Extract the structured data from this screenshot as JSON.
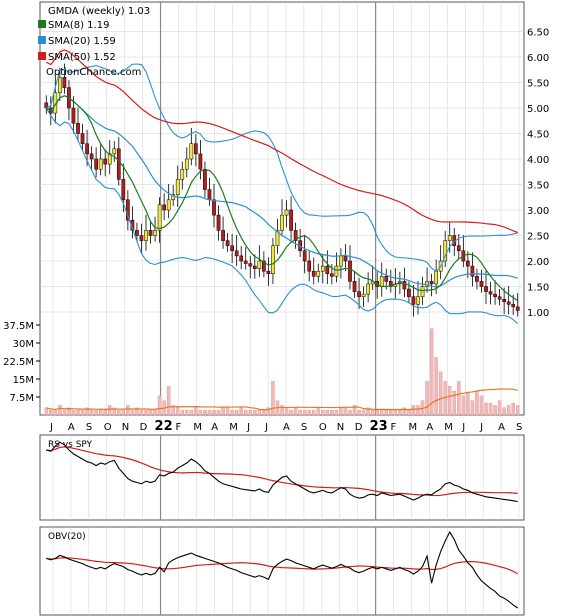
{
  "title": "GMDA (weekly) 1.03",
  "watermark": "OptionChance.com",
  "legend": [
    {
      "label": "SMA(8) 1.19",
      "color": "#1a7d1a"
    },
    {
      "label": "SMA(20) 1.59",
      "color": "#2b8fd6"
    },
    {
      "label": "SMA(50) 1.52",
      "color": "#d41c1c"
    }
  ],
  "colors": {
    "up": "#f2e936",
    "down": "#b81d1d",
    "grid": "#d0d0d0",
    "volume": "#f0b8b8",
    "volume_avg": "#e07a1c",
    "rs_line": "#000000",
    "rs_avg": "#d41c1c"
  },
  "chart_data": [
    {
      "type": "candlestick",
      "name": "price",
      "y_ticks": [
        "6.50",
        "6.00",
        "5.50",
        "5.00",
        "4.50",
        "4.00",
        "3.50",
        "3.00",
        "2.50",
        "2.00",
        "1.50",
        "1.00"
      ],
      "ylim": [
        0.6,
        6.8
      ],
      "x_labels": [
        "J",
        "A",
        "S",
        "O",
        "N",
        "D",
        "22",
        "F",
        "M",
        "A",
        "M",
        "J",
        "J",
        "A",
        "S",
        "O",
        "N",
        "D",
        "23",
        "F",
        "M",
        "A",
        "M",
        "J",
        "J",
        "A",
        "S"
      ],
      "close": [
        5.0,
        4.9,
        5.3,
        5.6,
        5.4,
        5.0,
        4.7,
        4.5,
        4.3,
        4.1,
        4.0,
        3.8,
        4.0,
        3.9,
        4.1,
        4.2,
        3.6,
        3.2,
        2.8,
        2.6,
        2.5,
        2.4,
        2.6,
        2.5,
        2.6,
        3.1,
        3.0,
        3.2,
        3.3,
        3.6,
        3.8,
        4.0,
        4.3,
        4.1,
        3.8,
        3.4,
        3.2,
        2.9,
        2.6,
        2.4,
        2.3,
        2.2,
        2.1,
        2.0,
        1.95,
        1.9,
        1.85,
        2.0,
        1.8,
        1.75,
        2.3,
        2.6,
        2.9,
        3.0,
        2.6,
        2.4,
        2.2,
        2.0,
        1.8,
        1.7,
        1.8,
        1.9,
        1.75,
        1.7,
        1.9,
        2.1,
        2.0,
        1.6,
        1.4,
        1.3,
        1.35,
        1.55,
        1.6,
        1.5,
        1.7,
        1.6,
        1.5,
        1.55,
        1.6,
        1.45,
        1.3,
        1.15,
        1.3,
        1.5,
        1.6,
        1.55,
        1.8,
        2.0,
        2.4,
        2.5,
        2.3,
        2.2,
        2.0,
        1.9,
        1.7,
        1.6,
        1.5,
        1.4,
        1.35,
        1.3,
        1.25,
        1.2,
        1.15,
        1.1,
        1.03
      ],
      "volume_ticks": [
        "37.5M",
        "30M",
        "22.5M",
        "15M",
        "7.5M"
      ],
      "volume": [
        3,
        2,
        2,
        4,
        2,
        3,
        2,
        2,
        2,
        3,
        2,
        2,
        2,
        2,
        4,
        3,
        2,
        2,
        4,
        2,
        3,
        2,
        2,
        2,
        2,
        8,
        6,
        12,
        4,
        3,
        2,
        2,
        2,
        3,
        2,
        2,
        2,
        2,
        2,
        3,
        3,
        2,
        2,
        3,
        2,
        2,
        2,
        2,
        2,
        3,
        14,
        6,
        4,
        3,
        2,
        3,
        2,
        2,
        2,
        2,
        3,
        2,
        2,
        2,
        2,
        3,
        3,
        2,
        4,
        2,
        2,
        3,
        2,
        2,
        2,
        2,
        2,
        2,
        2,
        3,
        2,
        4,
        4,
        6,
        14,
        36,
        24,
        18,
        14,
        12,
        10,
        14,
        8,
        9,
        6,
        10,
        8,
        5,
        5,
        4,
        6,
        3,
        4,
        5,
        4
      ]
    },
    {
      "type": "line",
      "name": "RS vs SPY"
    },
    {
      "type": "line",
      "name": "OBV(20)"
    }
  ]
}
